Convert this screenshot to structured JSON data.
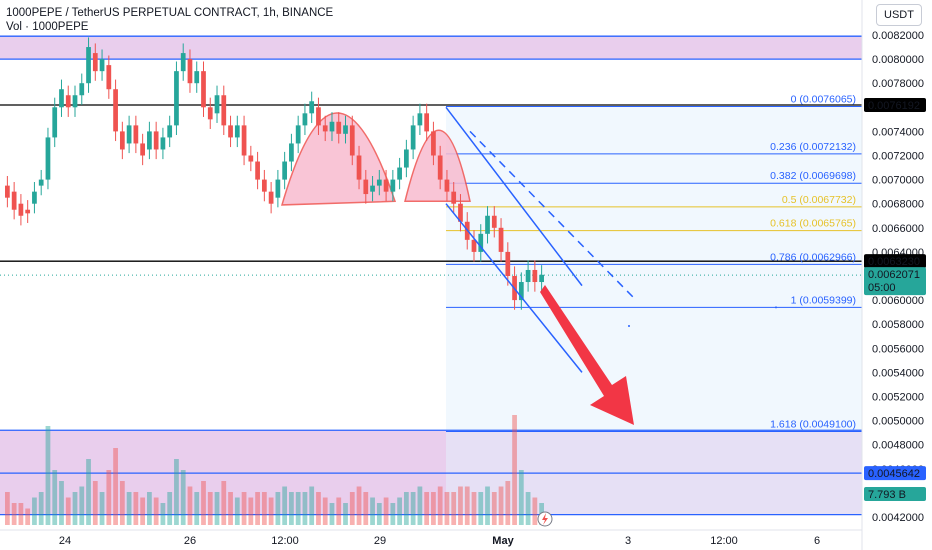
{
  "header": {
    "title": "1000PEPE / TetherUS PERPETUAL CONTRACT, 1h, BINANCE",
    "volume": "Vol · 1000PEPE"
  },
  "currency_button": "USDT",
  "icons": {
    "lightning": "lightning-icon"
  },
  "price_tags": [
    {
      "label": "0.0076192",
      "value": 0.0076192,
      "bg": "#000000",
      "fg": "#ffffff"
    },
    {
      "label": "0.0063230",
      "value": 0.006323,
      "bg": "#000000",
      "fg": "#ffffff"
    },
    {
      "label": "0.0062071",
      "sub": "05:00",
      "value": 0.0062071,
      "bg": "#26a69a",
      "fg": "#ffffff"
    },
    {
      "label": "0.0045642",
      "value": 0.0045642,
      "bg": "#2962ff",
      "fg": "#ffffff"
    },
    {
      "label": "7.793 B",
      "bg": "#26a69a",
      "fg": "#ffffff"
    }
  ],
  "fib_levels": [
    {
      "label": "0 (0.0076065)",
      "value": 0.0076065,
      "color": "#2962ff"
    },
    {
      "label": "0.236 (0.0072132)",
      "value": 0.0072132,
      "color": "#2962ff"
    },
    {
      "label": "0.382 (0.0069698)",
      "value": 0.0069698,
      "color": "#2962ff"
    },
    {
      "label": "0.5 (0.0067732)",
      "value": 0.0067732,
      "color": "#e6c229"
    },
    {
      "label": "0.618 (0.0065765)",
      "value": 0.0065765,
      "color": "#e6c229"
    },
    {
      "label": "0.786 (0.0062966)",
      "value": 0.0062966,
      "color": "#2962ff"
    },
    {
      "label": "1 (0.0059399)",
      "value": 0.0059399,
      "color": "#2962ff"
    },
    {
      "label": "1.618 (0.0049100)",
      "value": 0.00491,
      "color": "#2962ff"
    }
  ],
  "colors": {
    "up": "#26a69a",
    "down": "#ef5350",
    "zone": "#e1bee7",
    "pattern": "#f8bbd0",
    "arrow": "#f23645"
  },
  "chart_data": {
    "type": "candlestick",
    "ylim": [
      0.0041,
      0.0083
    ],
    "y_ticks": [
      "0.0082000",
      "0.0080000",
      "0.0078000",
      "0.0076000",
      "0.0074000",
      "0.0072000",
      "0.0070000",
      "0.0068000",
      "0.0066000",
      "0.0064000",
      "0.0062000",
      "0.0060000",
      "0.0058000",
      "0.0056000",
      "0.0054000",
      "0.0052000",
      "0.0050000",
      "0.0048000",
      "0.0046000",
      "0.0044000",
      "0.0042000"
    ],
    "x_ticks": [
      "24",
      "26",
      "12:00",
      "29",
      "May",
      "3",
      "12:00",
      "6"
    ],
    "horizontal_lines": [
      0.00819,
      0.008,
      0.0076192,
      0.006323,
      0.00492,
      0.0045642,
      0.00422
    ],
    "candles": [
      [
        0.00695,
        0.00685
      ],
      [
        0.0069,
        0.00675
      ],
      [
        0.0068,
        0.0067
      ],
      [
        0.00675,
        0.00672
      ],
      [
        0.0068,
        0.0069
      ],
      [
        0.00695,
        0.007
      ],
      [
        0.007,
        0.00735
      ],
      [
        0.00735,
        0.0076
      ],
      [
        0.0076,
        0.00775
      ],
      [
        0.0077,
        0.0076
      ],
      [
        0.0076,
        0.0077
      ],
      [
        0.0077,
        0.0078
      ],
      [
        0.0078,
        0.0081
      ],
      [
        0.00805,
        0.0079
      ],
      [
        0.0079,
        0.008
      ],
      [
        0.00795,
        0.00775
      ],
      [
        0.00775,
        0.0074
      ],
      [
        0.0074,
        0.00725
      ],
      [
        0.0073,
        0.00745
      ],
      [
        0.00745,
        0.0073
      ],
      [
        0.0073,
        0.0072
      ],
      [
        0.00725,
        0.0074
      ],
      [
        0.0074,
        0.00725
      ],
      [
        0.00725,
        0.00735
      ],
      [
        0.00735,
        0.00745
      ],
      [
        0.00745,
        0.0079
      ],
      [
        0.0079,
        0.00805
      ],
      [
        0.008,
        0.0078
      ],
      [
        0.0078,
        0.0079
      ],
      [
        0.0079,
        0.0076
      ],
      [
        0.0076,
        0.0075
      ],
      [
        0.00755,
        0.0077
      ],
      [
        0.0077,
        0.00745
      ],
      [
        0.00745,
        0.00735
      ],
      [
        0.00735,
        0.00745
      ],
      [
        0.00745,
        0.0072
      ],
      [
        0.0072,
        0.00715
      ],
      [
        0.00715,
        0.007
      ],
      [
        0.007,
        0.0069
      ],
      [
        0.0069,
        0.0068
      ],
      [
        0.00685,
        0.007
      ],
      [
        0.007,
        0.00715
      ],
      [
        0.00715,
        0.0073
      ],
      [
        0.0073,
        0.00745
      ],
      [
        0.00745,
        0.00755
      ],
      [
        0.00755,
        0.00765
      ],
      [
        0.0076,
        0.00745
      ],
      [
        0.00745,
        0.0074
      ],
      [
        0.0074,
        0.00748
      ],
      [
        0.00748,
        0.00738
      ],
      [
        0.00738,
        0.00745
      ],
      [
        0.00745,
        0.0072
      ],
      [
        0.0072,
        0.007
      ],
      [
        0.007,
        0.00688
      ],
      [
        0.0069,
        0.00695
      ],
      [
        0.00695,
        0.007
      ],
      [
        0.007,
        0.0069
      ],
      [
        0.0069,
        0.007
      ],
      [
        0.007,
        0.0071
      ],
      [
        0.0071,
        0.00725
      ],
      [
        0.00725,
        0.00745
      ],
      [
        0.00745,
        0.00755
      ],
      [
        0.00755,
        0.0074
      ],
      [
        0.0074,
        0.0072
      ],
      [
        0.0072,
        0.007
      ],
      [
        0.007,
        0.0069
      ],
      [
        0.0069,
        0.0068
      ],
      [
        0.0068,
        0.00665
      ],
      [
        0.00665,
        0.0065
      ],
      [
        0.0065,
        0.0064
      ],
      [
        0.0064,
        0.00655
      ],
      [
        0.00655,
        0.0067
      ],
      [
        0.0067,
        0.0066
      ],
      [
        0.0066,
        0.0064
      ],
      [
        0.0064,
        0.0062
      ],
      [
        0.0062,
        0.006
      ],
      [
        0.006,
        0.00615
      ],
      [
        0.00615,
        0.00625
      ],
      [
        0.00625,
        0.00615
      ],
      [
        0.00615,
        0.00621
      ]
    ],
    "volume": [
      0.3,
      0.2,
      0.2,
      0.15,
      0.25,
      0.3,
      0.9,
      0.5,
      0.4,
      0.25,
      0.3,
      0.35,
      0.6,
      0.4,
      0.3,
      0.5,
      0.7,
      0.4,
      0.3,
      0.3,
      0.25,
      0.3,
      0.25,
      0.2,
      0.3,
      0.6,
      0.5,
      0.35,
      0.3,
      0.4,
      0.3,
      0.3,
      0.4,
      0.3,
      0.25,
      0.3,
      0.25,
      0.3,
      0.3,
      0.25,
      0.3,
      0.35,
      0.3,
      0.3,
      0.3,
      0.35,
      0.3,
      0.25,
      0.2,
      0.25,
      0.2,
      0.3,
      0.35,
      0.3,
      0.25,
      0.2,
      0.25,
      0.2,
      0.25,
      0.3,
      0.3,
      0.35,
      0.3,
      0.3,
      0.35,
      0.3,
      0.3,
      0.35,
      0.35,
      0.3,
      0.3,
      0.35,
      0.3,
      0.35,
      0.4,
      1.0,
      0.5,
      0.3,
      0.25,
      0.2
    ]
  }
}
